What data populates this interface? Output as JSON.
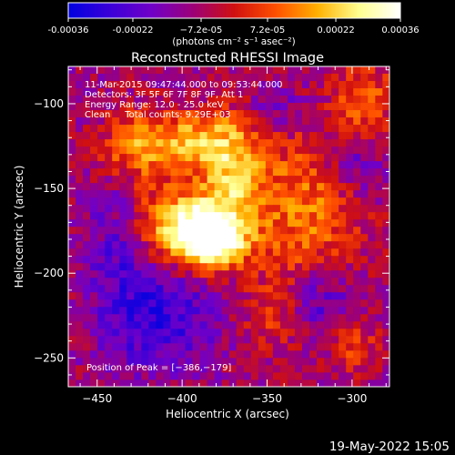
{
  "chart_data": {
    "type": "heatmap",
    "title": "Reconstructed RHESSI Image",
    "xlabel": "Heliocentric X (arcsec)",
    "ylabel": "Heliocentric Y (arcsec)",
    "xlim": [
      -467,
      -278
    ],
    "ylim": [
      -267,
      -78
    ],
    "x_ticks": [
      -450,
      -400,
      -350,
      -300
    ],
    "y_ticks": [
      -100,
      -150,
      -200,
      -250
    ],
    "x_tick_labels": [
      "−450",
      "−400",
      "−350",
      "−300"
    ],
    "y_tick_labels": [
      "−100",
      "−150",
      "−200",
      "−250"
    ],
    "colorbar": {
      "range": [
        -0.00036,
        0.00036
      ],
      "ticks": [
        -0.00036,
        -0.00022,
        -7.2e-05,
        7.2e-05,
        0.00022,
        0.00036
      ],
      "tick_labels": [
        "-0.00036",
        "-0.00022",
        "−7.2e-05",
        "7.2e-05",
        "0.00022",
        "0.00036"
      ],
      "unit_line": "(photons cm⁻² s⁻¹ asec⁻²)"
    },
    "annotations": [
      "11-Mar-2015 09:47:44.000 to 09:53:44.000",
      "Detectors: 3F 5F 6F 7F 8F 9F, Att 1",
      "Energy Range: 12.0 - 25.0 keV",
      "Clean     Total counts: 9.29E+03"
    ],
    "peak_label": "Position of Peak = [−386,−179]",
    "peak": [
      -386,
      -179
    ],
    "sources": [
      {
        "x": -386,
        "y": -179,
        "amp": 1.0,
        "sx": 14,
        "sy": 11
      },
      {
        "x": -400,
        "y": -168,
        "amp": 0.7,
        "sx": 22,
        "sy": 14
      },
      {
        "x": -395,
        "y": -120,
        "amp": 0.55,
        "sx": 20,
        "sy": 12
      },
      {
        "x": -372,
        "y": -140,
        "amp": 0.55,
        "sx": 14,
        "sy": 22
      },
      {
        "x": -430,
        "y": -125,
        "amp": 0.45,
        "sx": 15,
        "sy": 15
      },
      {
        "x": -328,
        "y": -160,
        "amp": 0.45,
        "sx": 22,
        "sy": 32
      },
      {
        "x": -295,
        "y": -95,
        "amp": 0.4,
        "sx": 12,
        "sy": 16
      },
      {
        "x": -345,
        "y": -220,
        "amp": 0.35,
        "sx": 14,
        "sy": 16
      },
      {
        "x": -302,
        "y": -240,
        "amp": 0.3,
        "sx": 10,
        "sy": 12
      },
      {
        "x": -440,
        "y": -180,
        "amp": -0.3,
        "sx": 12,
        "sy": 30
      },
      {
        "x": -415,
        "y": -225,
        "amp": -0.45,
        "sx": 22,
        "sy": 20
      },
      {
        "x": -325,
        "y": -215,
        "amp": -0.4,
        "sx": 16,
        "sy": 14
      },
      {
        "x": -300,
        "y": -135,
        "amp": -0.3,
        "sx": 12,
        "sy": 12
      },
      {
        "x": -345,
        "y": -100,
        "amp": -0.2,
        "sx": 12,
        "sy": 10
      }
    ],
    "colors": {
      "scale_stops": [
        "#0000e0",
        "#3a00d8",
        "#7000c8",
        "#9c0078",
        "#d01010",
        "#ff5000",
        "#ffb000",
        "#ffff90",
        "#ffffff"
      ],
      "background": "#000000",
      "frame": "#ffffff"
    }
  },
  "footer": {
    "timestamp": "19-May-2022 15:05"
  }
}
